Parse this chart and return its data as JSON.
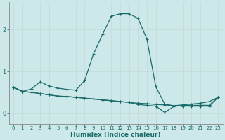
{
  "xlabel": "Humidex (Indice chaleur)",
  "bg_color": "#cce8e8",
  "line_color": "#1a6b6b",
  "vgrid_color": "#c8d8d8",
  "hgrid_color": "#c8d8d8",
  "xlim": [
    -0.5,
    23.5
  ],
  "ylim": [
    -0.25,
    2.65
  ],
  "yticks": [
    0,
    1,
    2
  ],
  "xticks": [
    0,
    1,
    2,
    3,
    4,
    5,
    6,
    7,
    8,
    9,
    10,
    11,
    12,
    13,
    14,
    15,
    16,
    17,
    18,
    19,
    20,
    21,
    22,
    23
  ],
  "line1_x": [
    0,
    1,
    2,
    3,
    4,
    5,
    6,
    7,
    8,
    9,
    10,
    11,
    12,
    13,
    14,
    15,
    16,
    17,
    18,
    19,
    20,
    21,
    22,
    23
  ],
  "line1_y": [
    0.62,
    0.52,
    0.58,
    0.75,
    0.65,
    0.6,
    0.57,
    0.55,
    0.78,
    1.42,
    1.88,
    2.32,
    2.38,
    2.38,
    2.27,
    1.77,
    0.63,
    0.22,
    0.18,
    0.2,
    0.22,
    0.24,
    0.28,
    0.38
  ],
  "line2_x": [
    0,
    1,
    2,
    3,
    4,
    5,
    6,
    7,
    8,
    9,
    10,
    11,
    12,
    13,
    14,
    15,
    16,
    17,
    18,
    19,
    20,
    21,
    22,
    23
  ],
  "line2_y": [
    0.62,
    0.52,
    0.5,
    0.47,
    0.44,
    0.41,
    0.4,
    0.38,
    0.36,
    0.34,
    0.32,
    0.3,
    0.28,
    0.26,
    0.24,
    0.23,
    0.21,
    0.2,
    0.18,
    0.17,
    0.17,
    0.17,
    0.17,
    0.38
  ],
  "line3_x": [
    0,
    1,
    2,
    3,
    4,
    5,
    6,
    7,
    8,
    9,
    10,
    11,
    12,
    13,
    14,
    15,
    16,
    17,
    18,
    19,
    20,
    21,
    22,
    23
  ],
  "line3_y": [
    0.62,
    0.52,
    0.5,
    0.47,
    0.44,
    0.41,
    0.4,
    0.38,
    0.36,
    0.34,
    0.32,
    0.3,
    0.28,
    0.26,
    0.21,
    0.19,
    0.17,
    0.02,
    0.16,
    0.19,
    0.19,
    0.19,
    0.19,
    0.38
  ]
}
